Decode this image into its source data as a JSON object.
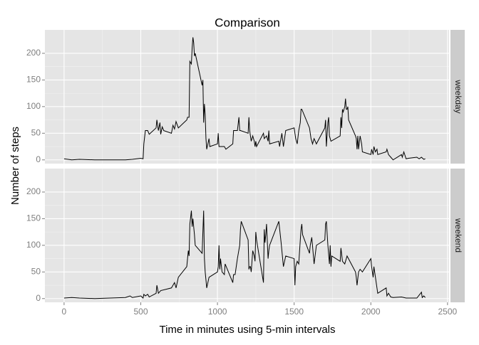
{
  "chart_data": {
    "type": "line",
    "title": "Comparison",
    "xlabel": "Time in minutes using 5-min intervals",
    "ylabel": "Number of steps",
    "color": "#000000",
    "grid": true,
    "xlim": [
      -125,
      2510
    ],
    "ylim": [
      -7,
      244
    ],
    "xticks": [
      0,
      500,
      1000,
      1500,
      2000,
      2500
    ],
    "yticks": [
      0,
      50,
      100,
      150,
      200
    ],
    "facets": [
      {
        "name": "weekday",
        "x": [
          0,
          50,
          100,
          200,
          300,
          400,
          445,
          500,
          515,
          520,
          530,
          545,
          555,
          600,
          605,
          615,
          625,
          630,
          640,
          650,
          700,
          710,
          720,
          730,
          745,
          800,
          805,
          815,
          820,
          830,
          835,
          840,
          845,
          850,
          855,
          900,
          905,
          910,
          915,
          920,
          925,
          930,
          945,
          950,
          1000,
          1005,
          1010,
          1030,
          1045,
          1055,
          1100,
          1105,
          1115,
          1130,
          1140,
          1145,
          1150,
          1200,
          1205,
          1210,
          1220,
          1230,
          1240,
          1245,
          1250,
          1255,
          1300,
          1305,
          1320,
          1330,
          1335,
          1340,
          1400,
          1405,
          1420,
          1430,
          1445,
          1500,
          1510,
          1520,
          1530,
          1540,
          1545,
          1550,
          1600,
          1605,
          1610,
          1620,
          1630,
          1645,
          1700,
          1705,
          1710,
          1720,
          1725,
          1730,
          1735,
          1740,
          1800,
          1805,
          1810,
          1815,
          1820,
          1830,
          1835,
          1840,
          1845,
          1850,
          1855,
          1900,
          1905,
          1910,
          1915,
          1920,
          1930,
          1940,
          1945,
          2000,
          2005,
          2015,
          2020,
          2030,
          2040,
          2045,
          2100,
          2105,
          2115,
          2130,
          2145,
          2200,
          2205,
          2215,
          2230,
          2245,
          2300,
          2315,
          2330,
          2345,
          2355
        ],
        "values": [
          2,
          0,
          1,
          0,
          0,
          0,
          1,
          3,
          2,
          30,
          55,
          55,
          48,
          60,
          75,
          55,
          70,
          48,
          62,
          55,
          50,
          65,
          58,
          72,
          60,
          75,
          80,
          80,
          185,
          180,
          210,
          230,
          220,
          195,
          200,
          140,
          150,
          70,
          105,
          85,
          40,
          20,
          40,
          25,
          30,
          50,
          25,
          25,
          25,
          20,
          30,
          55,
          55,
          55,
          80,
          55,
          55,
          50,
          80,
          55,
          35,
          45,
          35,
          25,
          35,
          25,
          50,
          40,
          45,
          35,
          55,
          30,
          35,
          25,
          50,
          25,
          55,
          60,
          40,
          30,
          55,
          70,
          95,
          95,
          60,
          50,
          40,
          30,
          40,
          30,
          60,
          75,
          25,
          70,
          80,
          45,
          40,
          35,
          45,
          80,
          60,
          95,
          90,
          100,
          115,
          95,
          95,
          100,
          75,
          45,
          40,
          20,
          45,
          20,
          45,
          30,
          15,
          10,
          20,
          10,
          25,
          15,
          20,
          10,
          15,
          20,
          10,
          5,
          0,
          10,
          5,
          15,
          2,
          3,
          5,
          2,
          5,
          1,
          2
        ]
      },
      {
        "name": "weekend",
        "x": [
          0,
          50,
          100,
          200,
          300,
          400,
          430,
          445,
          500,
          515,
          520,
          530,
          545,
          555,
          600,
          605,
          615,
          630,
          700,
          720,
          730,
          745,
          800,
          810,
          815,
          820,
          830,
          835,
          840,
          850,
          855,
          900,
          905,
          910,
          915,
          920,
          930,
          945,
          1000,
          1005,
          1010,
          1015,
          1020,
          1030,
          1045,
          1050,
          1100,
          1105,
          1115,
          1120,
          1130,
          1145,
          1150,
          1155,
          1200,
          1205,
          1210,
          1215,
          1220,
          1230,
          1240,
          1245,
          1250,
          1255,
          1300,
          1305,
          1310,
          1315,
          1320,
          1330,
          1335,
          1340,
          1400,
          1415,
          1430,
          1445,
          1500,
          1505,
          1510,
          1520,
          1530,
          1540,
          1545,
          1550,
          1555,
          1600,
          1605,
          1615,
          1630,
          1645,
          1700,
          1705,
          1710,
          1720,
          1730,
          1735,
          1740,
          1745,
          1800,
          1805,
          1815,
          1830,
          1845,
          1900,
          1905,
          1910,
          1920,
          1930,
          1945,
          2000,
          2005,
          2015,
          2020,
          2030,
          2045,
          2100,
          2105,
          2115,
          2130,
          2145,
          2200,
          2215,
          2230,
          2300,
          2330,
          2335,
          2345,
          2355
        ],
        "values": [
          1,
          2,
          1,
          0,
          1,
          2,
          5,
          2,
          5,
          1,
          8,
          5,
          8,
          3,
          10,
          25,
          10,
          15,
          20,
          30,
          20,
          40,
          60,
          90,
          80,
          140,
          165,
          135,
          150,
          120,
          100,
          85,
          125,
          165,
          75,
          50,
          20,
          40,
          50,
          60,
          100,
          55,
          75,
          50,
          45,
          65,
          30,
          45,
          45,
          55,
          75,
          100,
          130,
          145,
          110,
          55,
          60,
          60,
          50,
          90,
          80,
          70,
          125,
          110,
          30,
          130,
          105,
          120,
          140,
          75,
          90,
          100,
          145,
          105,
          60,
          80,
          75,
          25,
          60,
          70,
          65,
          110,
          130,
          140,
          120,
          85,
          100,
          115,
          65,
          100,
          110,
          140,
          145,
          100,
          65,
          100,
          60,
          80,
          70,
          95,
          70,
          65,
          80,
          50,
          40,
          25,
          50,
          55,
          50,
          75,
          60,
          40,
          60,
          40,
          10,
          20,
          5,
          10,
          3,
          2,
          3,
          2,
          1,
          1,
          12,
          2,
          5,
          2
        ]
      }
    ]
  }
}
